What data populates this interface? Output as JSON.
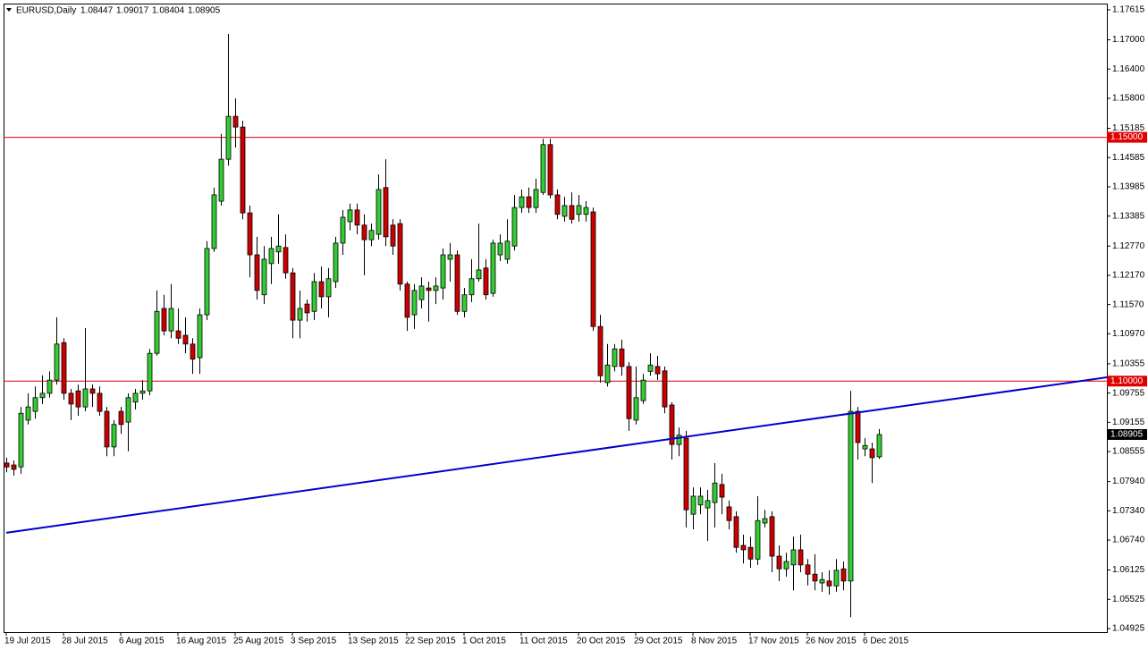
{
  "chart_data": {
    "type": "candlestick",
    "symbol": "EURUSD,Daily",
    "up_color": "#33cc33",
    "down_color": "#cc0000",
    "outline_color": "#000000",
    "xlim": [
      -0.375,
      153.875
    ],
    "ylim": [
      1.04852,
      1.17743
    ],
    "xticks": [
      {
        "value": 0,
        "label": "19 Jul 2015"
      },
      {
        "value": 8,
        "label": "28 Jul 2015"
      },
      {
        "value": 16,
        "label": "6 Aug 2015"
      },
      {
        "value": 24,
        "label": "16 Aug 2015"
      },
      {
        "value": 32,
        "label": "25 Aug 2015"
      },
      {
        "value": 40,
        "label": "3 Sep 2015"
      },
      {
        "value": 48,
        "label": "13 Sep 2015"
      },
      {
        "value": 56,
        "label": "22 Sep 2015"
      },
      {
        "value": 64,
        "label": "1 Oct 2015"
      },
      {
        "value": 72,
        "label": "11 Oct 2015"
      },
      {
        "value": 80,
        "label": "20 Oct 2015"
      },
      {
        "value": 88,
        "label": "29 Oct 2015"
      },
      {
        "value": 96,
        "label": "8 Nov 2015"
      },
      {
        "value": 104,
        "label": "17 Nov 2015"
      },
      {
        "value": 112,
        "label": "26 Nov 2015"
      },
      {
        "value": 120,
        "label": "6 Dec 2015"
      }
    ],
    "yticks": [
      1.17615,
      {
        "value": 1.17,
        "label": "1.17000"
      },
      {
        "value": 1.164,
        "label": "1.16400"
      },
      {
        "value": 1.158,
        "label": "1.15800"
      },
      1.15185,
      1.14585,
      1.13985,
      1.13385,
      {
        "value": 1.1277,
        "label": "1.12770"
      },
      {
        "value": 1.1217,
        "label": "1.12170"
      },
      {
        "value": 1.1157,
        "label": "1.11570"
      },
      {
        "value": 1.1097,
        "label": "1.10970"
      },
      1.10355,
      1.09755,
      1.09155,
      1.08555,
      {
        "value": 1.0794,
        "label": "1.07940"
      },
      {
        "value": 1.0734,
        "label": "1.07340"
      },
      {
        "value": 1.0674,
        "label": "1.06740"
      },
      1.06125,
      1.05525,
      1.04925
    ],
    "hlines": [
      {
        "value": 1.15,
        "label": "1.15000",
        "color": "#e00000"
      },
      {
        "value": 1.1,
        "label": "1.10000",
        "color": "#e00000"
      }
    ],
    "trendline": {
      "x": [
        0,
        154
      ],
      "y": [
        1.0689,
        1.1008
      ],
      "color": "#0000cc"
    },
    "open": [
      1.0832,
      1.0828,
      1.0824,
      1.092,
      1.0938,
      1.0966,
      1.0975,
      1.1002,
      1.1079,
      1.0975,
      1.098,
      1.0947,
      1.0984,
      1.0975,
      1.0938,
      1.0865,
      1.0938,
      1.0916,
      1.0957,
      1.0975,
      1.098,
      1.1057,
      1.1149,
      1.1103,
      1.1103,
      1.1094,
      1.1076,
      1.1048,
      1.1136,
      1.1272,
      1.1369,
      1.1455,
      1.1543,
      1.1521,
      1.1345,
      1.1259,
      1.1177,
      1.1241,
      1.1265,
      1.1274,
      1.1222,
      1.1125,
      1.1158,
      1.1143,
      1.1204,
      1.1173,
      1.1204,
      1.1283,
      1.1327,
      1.1351,
      1.132,
      1.129,
      1.1301,
      1.1397,
      1.132,
      1.1323,
      1.1199,
      1.1136,
      1.1167,
      1.1191,
      1.1186,
      1.1191,
      1.125,
      1.1259,
      1.1143,
      1.1177,
      1.121,
      1.1232,
      1.118,
      1.1259,
      1.125,
      1.1277,
      1.1356,
      1.1378,
      1.1356,
      1.1387,
      1.1485,
      1.1382,
      1.1338,
      1.136,
      1.1342,
      1.1342,
      1.1347,
      1.1112,
      1.0997,
      1.103,
      1.1066,
      1.103,
      1.092,
      1.096,
      1.102,
      1.103,
      1.1021,
      1.0951,
      1.087,
      1.0883,
      1.0727,
      1.0746,
      1.074,
      1.0751,
      1.0788,
      1.0742,
      1.0722,
      1.0663,
      1.0659,
      1.0635,
      1.0709,
      1.0722,
      1.0641,
      1.0615,
      1.0623,
      1.0654,
      1.0623,
      1.0604,
      1.0586,
      1.059,
      1.058,
      1.0615,
      1.059,
      1.0938,
      1.0861,
      1.0861,
      1.08447
    ],
    "high": [
      1.0843,
      1.0837,
      1.0947,
      1.0975,
      1.0989,
      1.1012,
      1.102,
      1.1131,
      1.1088,
      1.0984,
      1.0993,
      1.1109,
      1.0993,
      1.0989,
      1.0947,
      1.092,
      1.0947,
      1.0975,
      1.0984,
      1.1002,
      1.1066,
      1.1186,
      1.1177,
      1.1199,
      1.1149,
      1.1131,
      1.1088,
      1.1149,
      1.1287,
      1.1397,
      1.1507,
      1.1712,
      1.158,
      1.1534,
      1.136,
      1.1296,
      1.1277,
      1.1296,
      1.1342,
      1.1301,
      1.1232,
      1.1186,
      1.1167,
      1.1222,
      1.1235,
      1.1232,
      1.1296,
      1.1351,
      1.1364,
      1.1364,
      1.1342,
      1.1323,
      1.1424,
      1.1455,
      1.1332,
      1.1332,
      1.1204,
      1.1199,
      1.1213,
      1.1204,
      1.1213,
      1.1272,
      1.1283,
      1.1268,
      1.1191,
      1.125,
      1.1323,
      1.125,
      1.129,
      1.1301,
      1.1332,
      1.1382,
      1.1393,
      1.1397,
      1.1415,
      1.1497,
      1.1497,
      1.1393,
      1.1378,
      1.1387,
      1.1382,
      1.1369,
      1.1356,
      1.1136,
      1.1076,
      1.1076,
      1.1085,
      1.1039,
      1.103,
      1.1015,
      1.1057,
      1.1052,
      1.103,
      1.0957,
      1.0905,
      1.0898,
      1.0782,
      1.0782,
      1.0777,
      1.0832,
      1.081,
      1.0755,
      1.0733,
      1.0685,
      1.0681,
      1.0764,
      1.0736,
      1.0733,
      1.0663,
      1.0648,
      1.0681,
      1.0685,
      1.0635,
      1.0645,
      1.0608,
      1.0612,
      1.0635,
      1.063,
      1.098,
      1.0947,
      1.0883,
      1.0874,
      1.09017
    ],
    "low": [
      1.0813,
      1.0806,
      1.081,
      1.0911,
      1.0923,
      1.0953,
      1.0966,
      1.0993,
      1.0962,
      1.092,
      1.0929,
      1.0938,
      1.0947,
      1.0929,
      1.0846,
      1.0846,
      1.0892,
      1.0856,
      1.0942,
      1.0962,
      1.0971,
      1.1052,
      1.1094,
      1.1088,
      1.1076,
      1.1057,
      1.1015,
      1.1015,
      1.1125,
      1.1265,
      1.136,
      1.1442,
      1.1479,
      1.1332,
      1.1213,
      1.1167,
      1.1158,
      1.1199,
      1.1241,
      1.121,
      1.1088,
      1.1088,
      1.1122,
      1.1125,
      1.1149,
      1.1131,
      1.1191,
      1.1259,
      1.1309,
      1.1301,
      1.1217,
      1.1277,
      1.129,
      1.1277,
      1.1259,
      1.1186,
      1.1103,
      1.1107,
      1.1149,
      1.1122,
      1.1158,
      1.1167,
      1.1204,
      1.1136,
      1.1131,
      1.1162,
      1.1204,
      1.1167,
      1.1173,
      1.1246,
      1.1241,
      1.1268,
      1.1345,
      1.1345,
      1.1345,
      1.1382,
      1.1375,
      1.1332,
      1.1327,
      1.1323,
      1.1327,
      1.1327,
      1.1103,
      1.0997,
      1.0989,
      1.102,
      1.1011,
      1.0898,
      1.0911,
      1.0953,
      1.1011,
      1.1002,
      1.0934,
      1.0839,
      1.0846,
      1.07,
      1.0696,
      1.0727,
      1.0672,
      1.07,
      1.0727,
      1.0696,
      1.0648,
      1.0626,
      1.0617,
      1.0623,
      1.07,
      1.0608,
      1.059,
      1.0599,
      1.0571,
      1.0608,
      1.0581,
      1.0571,
      1.0568,
      1.0562,
      1.0568,
      1.0571,
      1.0516,
      1.0839,
      1.0846,
      1.0791,
      1.08404
    ],
    "close": [
      1.0824,
      1.0819,
      1.0934,
      1.0947,
      1.0966,
      1.0975,
      1.1002,
      1.1076,
      1.0975,
      1.0953,
      1.0947,
      1.0984,
      1.0975,
      1.0938,
      1.0865,
      1.0911,
      1.0911,
      1.0966,
      1.0975,
      1.098,
      1.1057,
      1.1143,
      1.1103,
      1.1149,
      1.1088,
      1.1076,
      1.1045,
      1.1136,
      1.1272,
      1.1382,
      1.1455,
      1.1543,
      1.1521,
      1.1345,
      1.1259,
      1.1186,
      1.125,
      1.1272,
      1.1277,
      1.1222,
      1.1125,
      1.1149,
      1.114,
      1.1204,
      1.1173,
      1.121,
      1.1283,
      1.1336,
      1.1351,
      1.132,
      1.129,
      1.1309,
      1.1393,
      1.1296,
      1.1277,
      1.1199,
      1.1131,
      1.1186,
      1.1195,
      1.1186,
      1.1195,
      1.1259,
      1.1259,
      1.1143,
      1.1177,
      1.121,
      1.1228,
      1.1177,
      1.1283,
      1.1283,
      1.1287,
      1.1356,
      1.1378,
      1.1356,
      1.1393,
      1.1485,
      1.1382,
      1.1342,
      1.136,
      1.1332,
      1.136,
      1.1356,
      1.1112,
      1.1011,
      1.1033,
      1.1066,
      1.103,
      1.0923,
      1.0966,
      1.1002,
      1.1033,
      1.1015,
      1.0947,
      1.087,
      1.0889,
      1.0736,
      1.0764,
      1.0764,
      1.0755,
      1.0791,
      1.0762,
      1.0714,
      1.0659,
      1.0654,
      1.0635,
      1.0714,
      1.0718,
      1.0641,
      1.0615,
      1.063,
      1.0654,
      1.0623,
      1.0604,
      1.059,
      1.0593,
      1.058,
      1.0612,
      1.059,
      1.0938,
      1.0874,
      1.0868,
      1.0843,
      1.08905
    ]
  }
}
